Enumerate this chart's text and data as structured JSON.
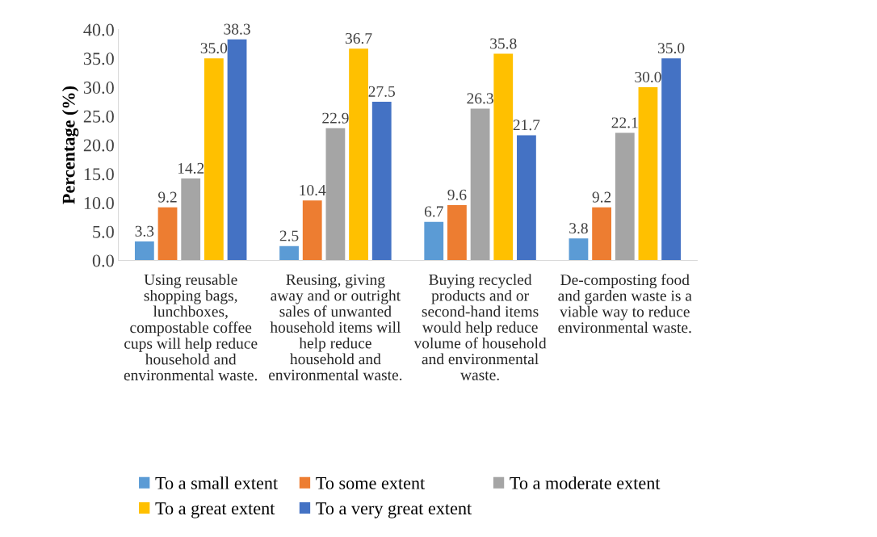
{
  "chart_data": {
    "type": "bar",
    "ylabel": "Percentage (%)",
    "categories": [
      "Using reusable\nshopping bags,\nlunchboxes,\ncompostable coffee\ncups will help reduce\nhousehold and\nenvironmental waste.",
      "Reusing, giving\naway and or outright\nsales of unwanted\nhousehold items will\nhelp reduce\nhousehold and\nenvironmental waste.",
      "Buying recycled\nproducts and or\nsecond-hand items\nwould help reduce\nvolume of household\nand environmental\nwaste.",
      "De-composting food\nand garden waste is a\nviable way to reduce\nenvironmental waste."
    ],
    "series": [
      {
        "name": "To a small extent",
        "color": "#5b9bd5",
        "values": [
          3.3,
          2.5,
          6.7,
          3.8
        ],
        "value_labels": [
          "3.3",
          "2.5",
          "6.7",
          "3.8"
        ]
      },
      {
        "name": "To some extent",
        "color": "#ed7d31",
        "values": [
          9.2,
          10.4,
          9.6,
          9.2
        ],
        "value_labels": [
          "9.2",
          "10.4",
          "9.6",
          "9.2"
        ]
      },
      {
        "name": "To a moderate extent",
        "color": "#a5a5a5",
        "values": [
          14.2,
          22.9,
          26.3,
          22.1
        ],
        "value_labels": [
          "14.2",
          "22.9",
          "26.3",
          "22.1"
        ]
      },
      {
        "name": "To a great extent",
        "color": "#ffc000",
        "values": [
          35.0,
          36.7,
          35.8,
          30.0
        ],
        "value_labels": [
          "35.0",
          "36.7",
          "35.8",
          "30.0"
        ]
      },
      {
        "name": "To a very great extent",
        "color": "#4472c4",
        "values": [
          38.3,
          27.5,
          21.7,
          35.0
        ],
        "value_labels": [
          "38.3",
          "27.5",
          "21.7",
          "35.0"
        ]
      }
    ],
    "ylim": [
      0,
      40
    ],
    "yticks": [
      {
        "value": 0,
        "label": "0.0"
      },
      {
        "value": 5,
        "label": "5.0"
      },
      {
        "value": 10,
        "label": "10.0"
      },
      {
        "value": 15,
        "label": "15.0"
      },
      {
        "value": 20,
        "label": "20.0"
      },
      {
        "value": 25,
        "label": "25.0"
      },
      {
        "value": 30,
        "label": "30.0"
      },
      {
        "value": 35,
        "label": "35.0"
      },
      {
        "value": 40,
        "label": "40.0"
      }
    ],
    "grid": false,
    "legend": "bottom"
  }
}
